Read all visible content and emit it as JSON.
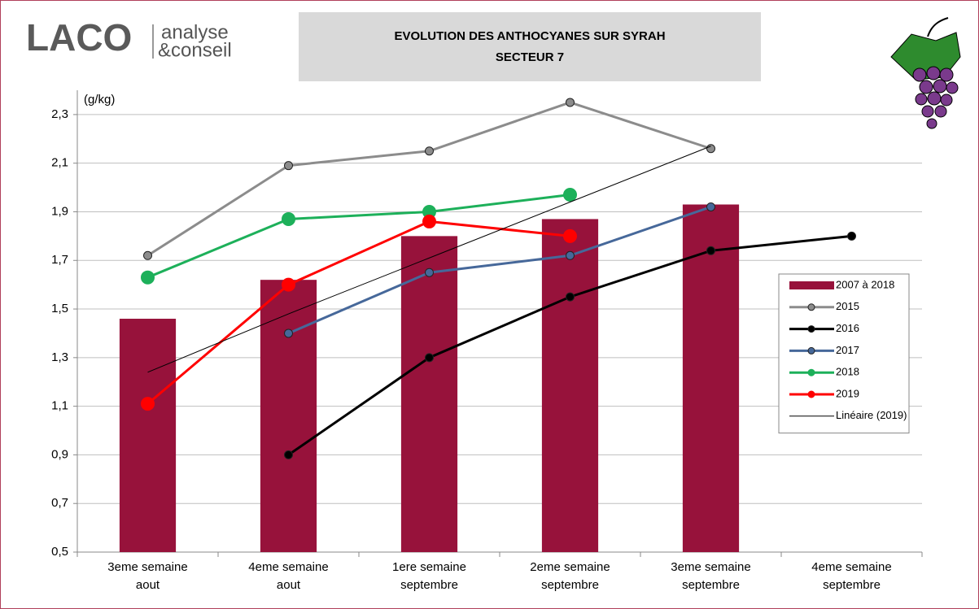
{
  "logo": {
    "name": "LACO",
    "tagline": [
      "analyse",
      "&conseil"
    ]
  },
  "chart_data": {
    "type": "bar-line",
    "title": "EVOLUTION DES ANTHOCYANES SUR SYRAH",
    "subtitle": "SECTEUR 7",
    "y_label": "(g/kg)",
    "categories": [
      [
        "3eme semaine",
        "aout"
      ],
      [
        "4eme semaine",
        "aout"
      ],
      [
        "1ere semaine",
        "septembre"
      ],
      [
        "2eme semaine",
        "septembre"
      ],
      [
        "3eme semaine",
        "septembre"
      ],
      [
        "4eme semaine",
        "septembre"
      ]
    ],
    "series": [
      {
        "name": "2007 à 2018",
        "kind": "bar",
        "color": "#97123b",
        "values": [
          1.46,
          1.62,
          1.8,
          1.87,
          1.93,
          null
        ]
      },
      {
        "name": "2015",
        "kind": "line",
        "marker": "small",
        "color": "#8c8c8c",
        "values": [
          1.72,
          2.09,
          2.15,
          2.35,
          2.16,
          null
        ]
      },
      {
        "name": "2016",
        "kind": "line",
        "marker": "small",
        "color": "#000000",
        "values": [
          null,
          0.9,
          1.3,
          1.55,
          1.74,
          1.8
        ]
      },
      {
        "name": "2017",
        "kind": "line",
        "marker": "small",
        "color": "#46689a",
        "values": [
          null,
          1.4,
          1.65,
          1.72,
          1.92,
          null
        ]
      },
      {
        "name": "2018",
        "kind": "line",
        "marker": "large",
        "color": "#1db05a",
        "values": [
          1.63,
          1.87,
          1.9,
          1.97,
          null,
          null
        ]
      },
      {
        "name": "2019",
        "kind": "line",
        "marker": "large",
        "color": "#ff0000",
        "values": [
          1.11,
          1.6,
          1.86,
          1.8,
          null,
          null
        ]
      },
      {
        "name": "Linéaire (2019)",
        "kind": "trend",
        "marker": "none",
        "color": "#000000",
        "values": [
          1.24,
          1.48,
          1.71,
          1.94,
          2.17,
          null
        ]
      }
    ],
    "ylim": [
      0.5,
      2.4
    ],
    "yticks": [
      {
        "value": 0.5,
        "label": "0,5"
      },
      {
        "value": 0.7,
        "label": "0,7"
      },
      {
        "value": 0.9,
        "label": "0,9"
      },
      {
        "value": 1.1,
        "label": "1,1"
      },
      {
        "value": 1.3,
        "label": "1,3"
      },
      {
        "value": 1.5,
        "label": "1,5"
      },
      {
        "value": 1.7,
        "label": "1,7"
      },
      {
        "value": 1.9,
        "label": "1,9"
      },
      {
        "value": 2.1,
        "label": "2,1"
      },
      {
        "value": 2.3,
        "label": "2,3"
      }
    ],
    "grid": true,
    "legend": "right"
  }
}
